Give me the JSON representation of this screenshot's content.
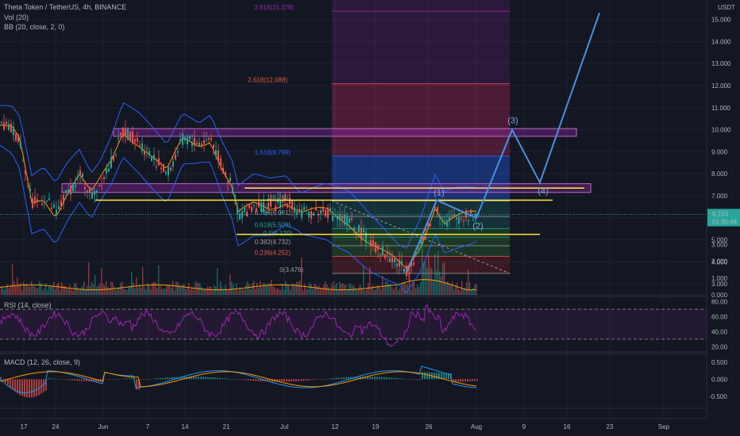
{
  "legend": {
    "title": "Theta Token / TetherUS, 4h, BINANCE",
    "vol": "Vol (20)",
    "bb": "BB (20, close, 2, 0)",
    "rsi": "RSI (14, close)",
    "macd": "MACD (12, 26, close, 9)"
  },
  "currency": "USDT",
  "colors": {
    "bg": "#131722",
    "grid": "#1e2230",
    "up": "#26a69a",
    "down": "#ef5350",
    "bb_band": "#2962ff",
    "bb_basis": "#ff9800",
    "yellow": "#ffeb3b",
    "wave": "#4a90e2",
    "rsi": "#9c27b0",
    "macd_line": "#2196f3",
    "signal_line": "#ff9800",
    "price_badge": "#26a69a"
  },
  "chart_data": [
    {
      "type": "candlestick",
      "name": "price",
      "x_labels": [
        "17",
        "24",
        "Jun",
        "7",
        "14",
        "21",
        "Jul",
        "12",
        "19",
        "26",
        "Aug",
        "9",
        "16",
        "23",
        "Sep"
      ],
      "y_ticks": [
        "15.000",
        "14.000",
        "13.000",
        "12.000",
        "11.000",
        "10.000",
        "9.000",
        "8.000",
        "7.000",
        "6.000",
        "5.000",
        "4.000",
        "3.000"
      ],
      "y_range": [
        2.5,
        15.6
      ],
      "current_price": "6.153",
      "countdown": "01:35:44",
      "fib_levels": [
        {
          "label": "3.618(15.378)",
          "value": 15.378
        },
        {
          "label": "2.618(12.088)",
          "value": 12.088
        },
        {
          "label": "1.618(8.799)",
          "value": 8.799
        },
        {
          "label": "1(6.765)",
          "value": 6.765
        },
        {
          "label": "0.786(6.061)",
          "value": 6.061
        },
        {
          "label": "0.618(5.509)",
          "value": 5.509
        },
        {
          "label": "0.5(5.120)",
          "value": 5.12
        },
        {
          "label": "0.382(4.732)",
          "value": 4.732
        },
        {
          "label": "0.236(4.252)",
          "value": 4.252
        },
        {
          "label": "0(3.476)",
          "value": 3.476
        }
      ],
      "waves": [
        {
          "label": "(1)",
          "value": 6.8
        },
        {
          "label": "(2)",
          "value": 6.0
        },
        {
          "label": "(3)",
          "value": 10.0
        },
        {
          "label": "(4)",
          "value": 7.6
        }
      ]
    },
    {
      "type": "bar",
      "name": "volume",
      "y_ticks": [
        "3.000",
        "2.000",
        "1.000",
        "0.000"
      ],
      "y_range": [
        0,
        3.4
      ]
    },
    {
      "type": "line",
      "name": "RSI",
      "y_ticks": [
        "80.00",
        "60.00",
        "40.00",
        "20.00"
      ],
      "y_range": [
        13,
        87
      ],
      "bands": [
        70,
        30
      ]
    },
    {
      "type": "line",
      "name": "MACD",
      "y_ticks": [
        "0.500",
        "0.000",
        "-0.500"
      ],
      "y_range": [
        -0.85,
        0.75
      ]
    }
  ]
}
